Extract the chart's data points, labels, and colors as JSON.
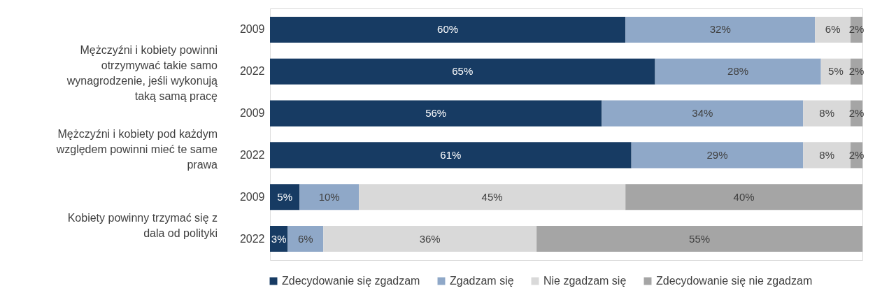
{
  "chart_data": {
    "type": "bar",
    "orientation": "horizontal",
    "stacked": true,
    "categories": [
      "2009",
      "2022",
      "2009",
      "2022",
      "2009",
      "2022"
    ],
    "annotations": [
      "Mężczyźni i kobiety powinni otrzymywać takie samo wynagrodzenie, jeśli wykonują taką samą pracę",
      "Mężczyźni i kobiety pod każdym względem powinni mieć te same prawa",
      "Kobiety powinny trzymać się z dala od polityki"
    ],
    "series": [
      {
        "name": "Zdecydowanie się zgadzam",
        "color": "#173b63",
        "values": [
          60,
          65,
          56,
          61,
          5,
          3
        ],
        "value_labels": [
          "60%",
          "65%",
          "56%",
          "61%",
          "5%",
          "3%"
        ]
      },
      {
        "name": "Zgadzam się",
        "color": "#8fa8c8",
        "values": [
          32,
          28,
          34,
          29,
          10,
          6
        ],
        "value_labels": [
          "32%",
          "28%",
          "34%",
          "29%",
          "10%",
          "6%"
        ]
      },
      {
        "name": "Nie zgadzam się",
        "color": "#d9d9d9",
        "values": [
          6,
          5,
          8,
          8,
          45,
          36
        ],
        "value_labels": [
          "6%",
          "5%",
          "8%",
          "8%",
          "45%",
          "36%"
        ]
      },
      {
        "name": "Zdecydowanie się nie zgadzam",
        "color": "#a5a5a5",
        "values": [
          2,
          2,
          2,
          2,
          40,
          55
        ],
        "value_labels": [
          "2%",
          "2%",
          "2%",
          "2%",
          "40%",
          "55%"
        ]
      }
    ],
    "legend": "bottom right"
  }
}
